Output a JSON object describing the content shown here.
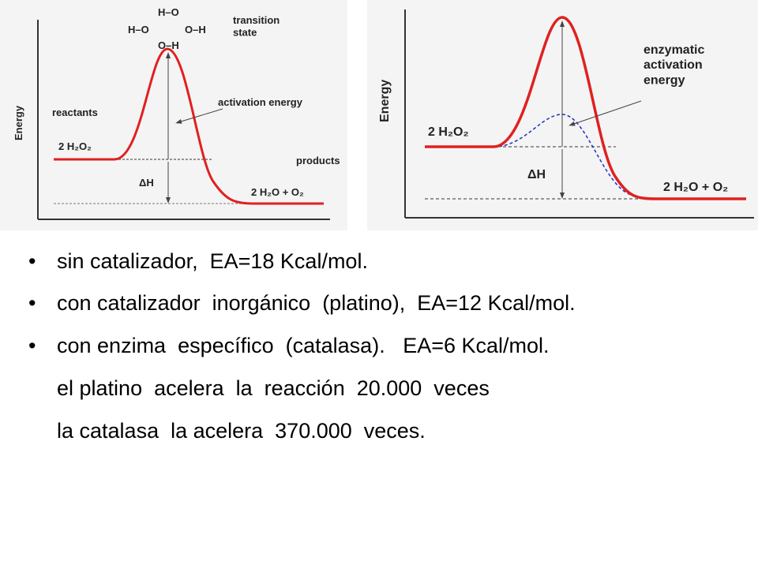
{
  "left_diagram": {
    "axis_label": "Energy",
    "molecule": [
      "H–O",
      "H–O",
      "O–H",
      "O–H"
    ],
    "transition_label": "transition state",
    "reactants_label": "reactants",
    "activation_label": "activation energy",
    "products_label": "products",
    "reactant_formula": "2 H₂O₂",
    "delta_label": "ΔH",
    "product_formula": "2 H₂O + O₂"
  },
  "right_diagram": {
    "axis_label": "Energy",
    "enzyme_label": "enzymatic activation energy",
    "reactant_formula": "2 H₂O₂",
    "delta_label": "ΔH",
    "product_formula": "2 H₂O + O₂"
  },
  "bullets": [
    "sin catalizador,  EA=18 Kcal/mol.",
    "con catalizador  inorgánico  (platino),  EA=12 Kcal/mol.",
    "con enzima  específico  (catalasa).   EA=6 Kcal/mol."
  ],
  "notes": [
    "el platino  acelera  la  reacción  20.000  veces",
    "la catalasa  la acelera  370.000  veces."
  ]
}
